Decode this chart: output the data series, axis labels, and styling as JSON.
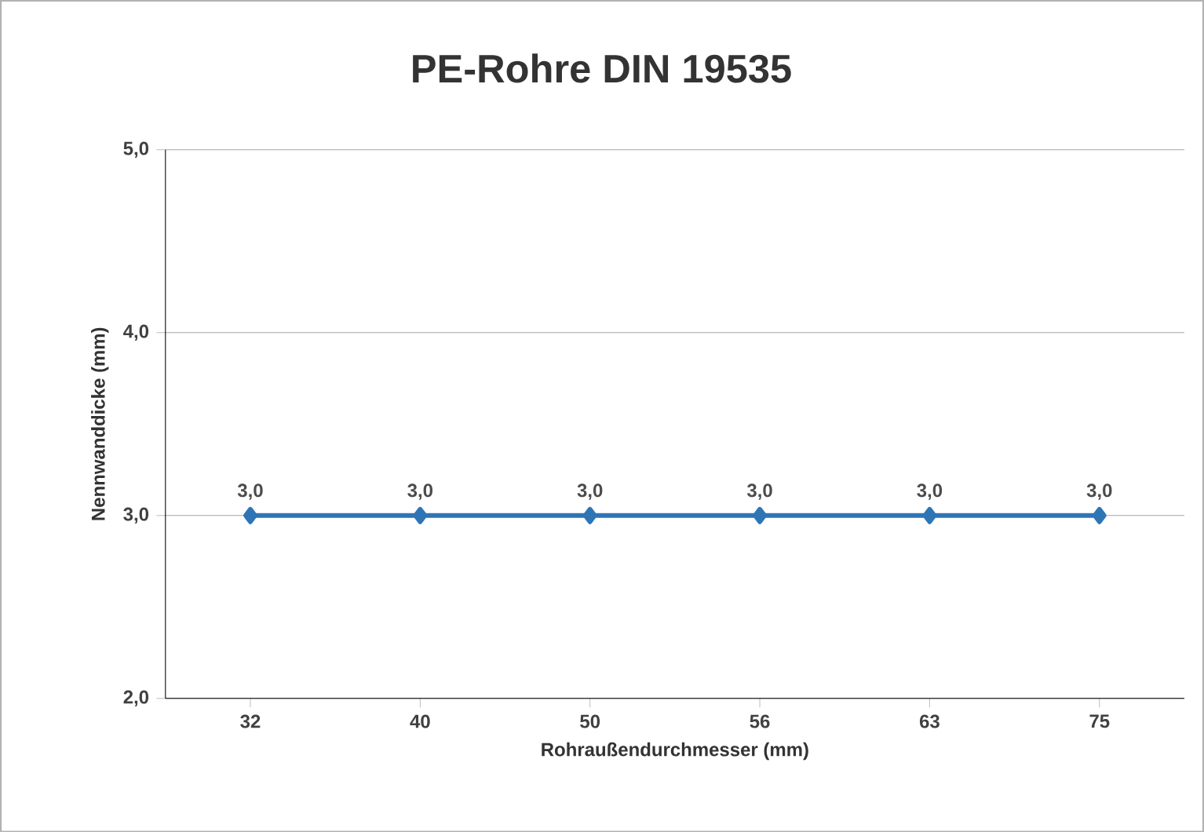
{
  "chart_data": {
    "type": "line",
    "title": "PE-Rohre DIN 19535",
    "xlabel": "Rohraußendurchmesser (mm)",
    "ylabel": "Nennwanddicke (mm)",
    "categories": [
      "32",
      "40",
      "50",
      "56",
      "63",
      "75"
    ],
    "series": [
      {
        "color": "#2e75b6",
        "values": [
          3.0,
          3.0,
          3.0,
          3.0,
          3.0,
          3.0
        ],
        "value_labels": [
          "3,0",
          "3,0",
          "3,0",
          "3,0",
          "3,0",
          "3,0"
        ]
      }
    ],
    "ylim": [
      2,
      5
    ],
    "yticks": [
      {
        "value": 2,
        "label": "2,0"
      },
      {
        "value": 3,
        "label": "3,0"
      },
      {
        "value": 4,
        "label": "4,0"
      },
      {
        "value": 5,
        "label": "5,0"
      }
    ],
    "grid": "y",
    "marker": "diamond",
    "line_style": "solid"
  }
}
